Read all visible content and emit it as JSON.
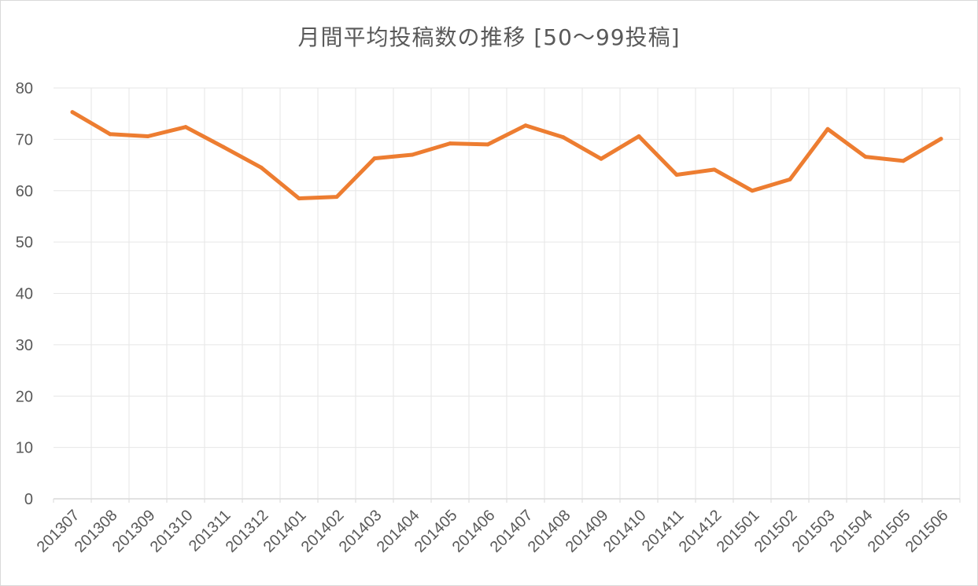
{
  "chart_data": {
    "type": "line",
    "title": "月間平均投稿数の推移 [50～99投稿]",
    "xlabel": "",
    "ylabel": "",
    "ylim": [
      0,
      80
    ],
    "yticks": [
      0,
      10,
      20,
      30,
      40,
      50,
      60,
      70,
      80
    ],
    "grid": true,
    "legend": "none",
    "categories": [
      "201307",
      "201308",
      "201309",
      "201310",
      "201311",
      "201312",
      "201401",
      "201402",
      "201403",
      "201404",
      "201405",
      "201406",
      "201407",
      "201408",
      "201409",
      "201410",
      "201411",
      "201412",
      "201501",
      "201502",
      "201503",
      "201504",
      "201505",
      "201506"
    ],
    "series": [
      {
        "color": "#ed7d31",
        "values": [
          75.3,
          71.0,
          70.6,
          72.4,
          68.5,
          64.5,
          58.5,
          58.8,
          66.3,
          67.0,
          69.2,
          69.0,
          72.7,
          70.4,
          66.2,
          70.6,
          63.1,
          64.1,
          60.0,
          62.2,
          72.0,
          66.6,
          65.8,
          70.1
        ]
      }
    ]
  }
}
